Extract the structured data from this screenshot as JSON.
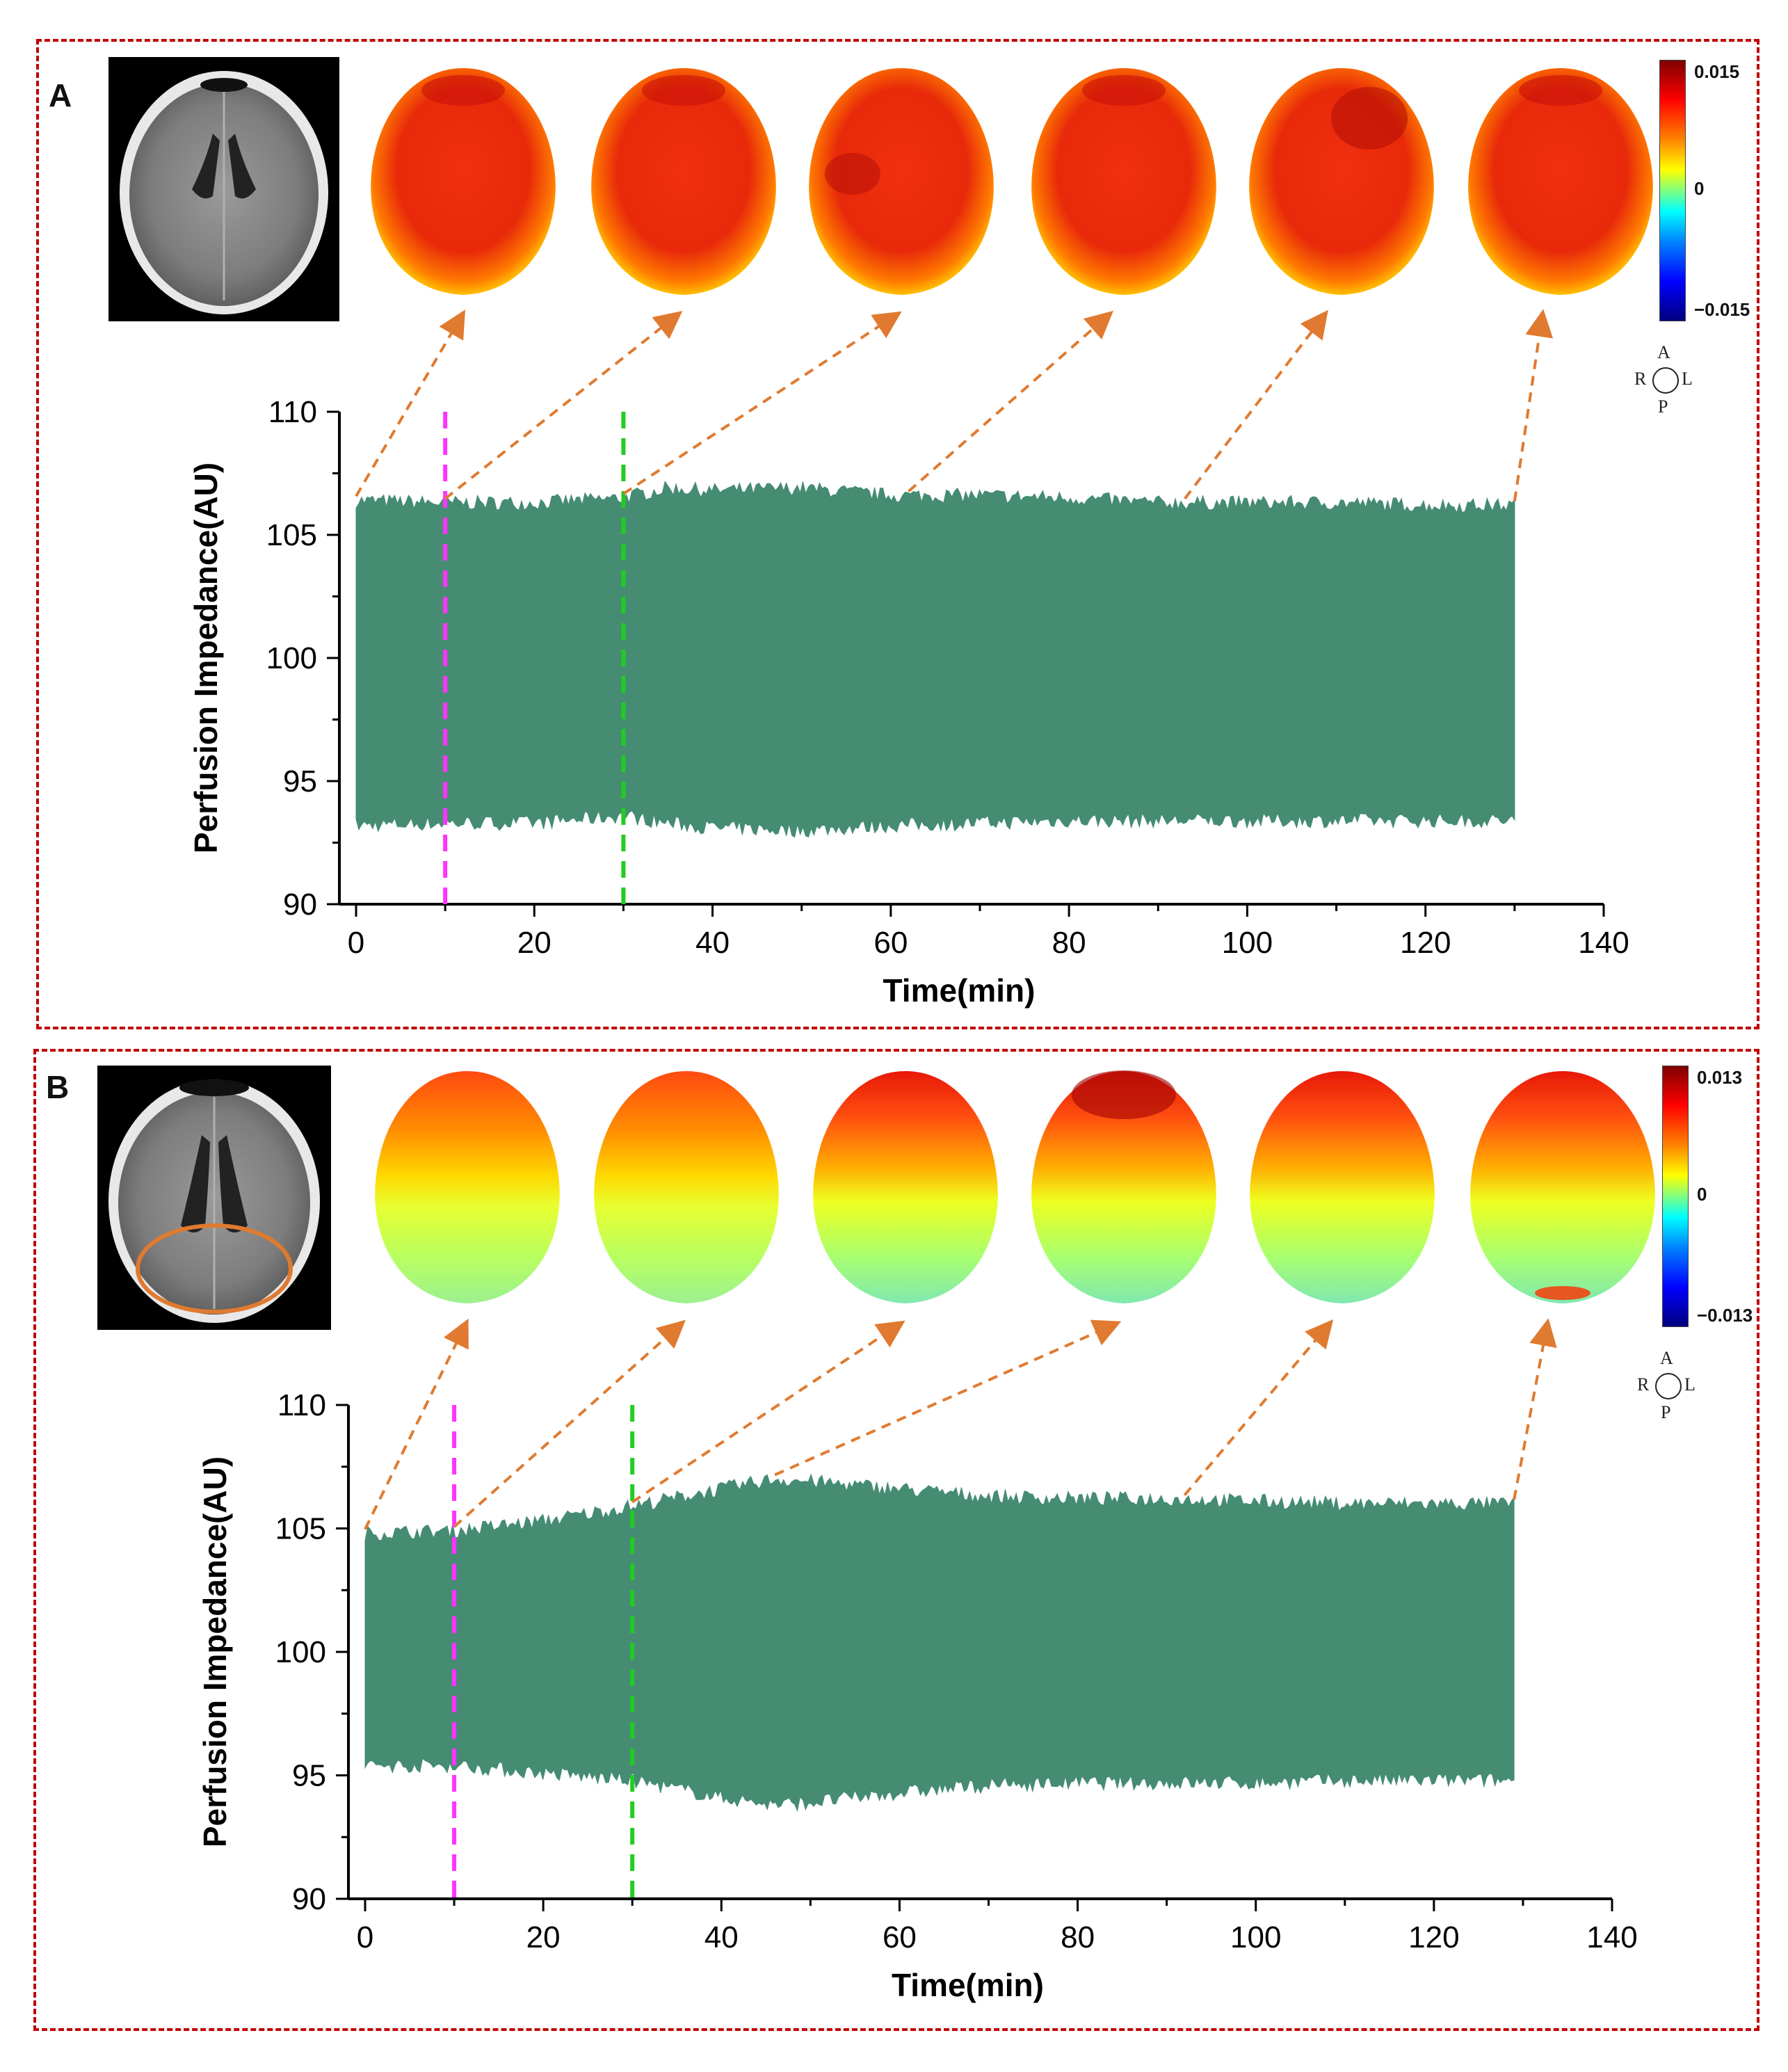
{
  "panels": [
    {
      "label": "A",
      "colorbar": {
        "max": "0.015",
        "mid": "0",
        "min": "−0.015"
      },
      "orientation": {
        "top": "A",
        "left": "R",
        "right": "L",
        "bottom": "P"
      },
      "heatmap_style": "mostly-red"
    },
    {
      "label": "B",
      "colorbar": {
        "max": "0.013",
        "mid": "0",
        "min": "−0.013"
      },
      "orientation": {
        "top": "A",
        "left": "R",
        "right": "L",
        "bottom": "P"
      },
      "heatmap_style": "red-top-yellow-green-bottom"
    }
  ],
  "colors": {
    "signal": "#458c72",
    "marker_magenta": "#ff33ff",
    "marker_green": "#22cc22",
    "arrow": "#e07a30",
    "border": "#c00000"
  },
  "chart_data": [
    {
      "type": "area",
      "panel": "A",
      "xlabel": "Time(min)",
      "ylabel": "Perfusion Impedance(AU)",
      "xlim": [
        0,
        140
      ],
      "ylim": [
        90,
        110
      ],
      "xticks": [
        0,
        20,
        40,
        60,
        80,
        100,
        120,
        140
      ],
      "yticks": [
        90,
        95,
        100,
        105,
        110
      ],
      "vertical_markers": [
        {
          "x": 10,
          "color": "magenta"
        },
        {
          "x": 30,
          "color": "green"
        }
      ],
      "envelope": {
        "x": [
          0,
          10,
          20,
          30,
          35,
          40,
          50,
          60,
          70,
          80,
          90,
          100,
          110,
          120,
          130
        ],
        "upper": [
          106.4,
          106.3,
          106.3,
          106.5,
          106.9,
          106.8,
          106.9,
          106.6,
          106.6,
          106.5,
          106.3,
          106.3,
          106.3,
          106.2,
          106.2
        ],
        "lower": [
          93.2,
          93.3,
          93.3,
          93.6,
          93.3,
          93.1,
          93.0,
          93.2,
          93.3,
          93.4,
          93.4,
          93.4,
          93.4,
          93.4,
          93.4
        ]
      },
      "arrow_times": [
        0,
        10,
        30,
        62,
        93,
        130
      ]
    },
    {
      "type": "area",
      "panel": "B",
      "xlabel": "Time(min)",
      "ylabel": "Perfusion Impedance(AU)",
      "xlim": [
        0,
        140
      ],
      "ylim": [
        90,
        110
      ],
      "xticks": [
        0,
        20,
        40,
        60,
        80,
        100,
        120,
        140
      ],
      "yticks": [
        90,
        95,
        100,
        105,
        110
      ],
      "vertical_markers": [
        {
          "x": 10,
          "color": "magenta"
        },
        {
          "x": 30,
          "color": "green"
        }
      ],
      "envelope": {
        "x": [
          0,
          10,
          20,
          30,
          40,
          46,
          50,
          60,
          70,
          80,
          90,
          100,
          110,
          120,
          129
        ],
        "upper": [
          104.8,
          104.9,
          105.3,
          105.9,
          106.6,
          107.0,
          106.9,
          106.6,
          106.3,
          106.2,
          106.2,
          106.1,
          106.0,
          106.0,
          106.0
        ],
        "lower": [
          95.4,
          95.4,
          95.1,
          94.8,
          94.1,
          93.8,
          93.9,
          94.3,
          94.6,
          94.7,
          94.7,
          94.7,
          94.8,
          94.8,
          94.8
        ]
      },
      "arrow_times": [
        0,
        10,
        30,
        46,
        92,
        129
      ]
    }
  ]
}
